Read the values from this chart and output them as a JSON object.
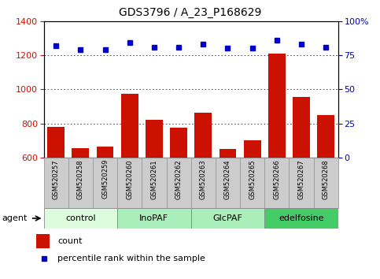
{
  "title": "GDS3796 / A_23_P168629",
  "samples": [
    "GSM520257",
    "GSM520258",
    "GSM520259",
    "GSM520260",
    "GSM520261",
    "GSM520262",
    "GSM520263",
    "GSM520264",
    "GSM520265",
    "GSM520266",
    "GSM520267",
    "GSM520268"
  ],
  "count_values": [
    780,
    655,
    665,
    975,
    820,
    775,
    865,
    650,
    700,
    1210,
    955,
    850
  ],
  "percentile_values": [
    82,
    79,
    79,
    84,
    81,
    81,
    83,
    80,
    80,
    86,
    83,
    81
  ],
  "groups": [
    {
      "label": "control",
      "start": 0,
      "end": 3,
      "color": "#ddfcdd"
    },
    {
      "label": "InoPAF",
      "start": 3,
      "end": 6,
      "color": "#aaeebb"
    },
    {
      "label": "GlcPAF",
      "start": 6,
      "end": 9,
      "color": "#aaeebb"
    },
    {
      "label": "edelfosine",
      "start": 9,
      "end": 12,
      "color": "#44cc66"
    }
  ],
  "ylim_left": [
    600,
    1400
  ],
  "ylim_right": [
    0,
    100
  ],
  "yticks_left": [
    600,
    800,
    1000,
    1200,
    1400
  ],
  "yticks_right": [
    0,
    25,
    50,
    75,
    100
  ],
  "bar_color": "#cc1100",
  "dot_color": "#0000cc",
  "grid_color": "#333333",
  "xlabel_color_left": "#cc1100",
  "xlabel_color_right": "#0000cc",
  "cell_color": "#cccccc",
  "cell_edge_color": "#999999"
}
